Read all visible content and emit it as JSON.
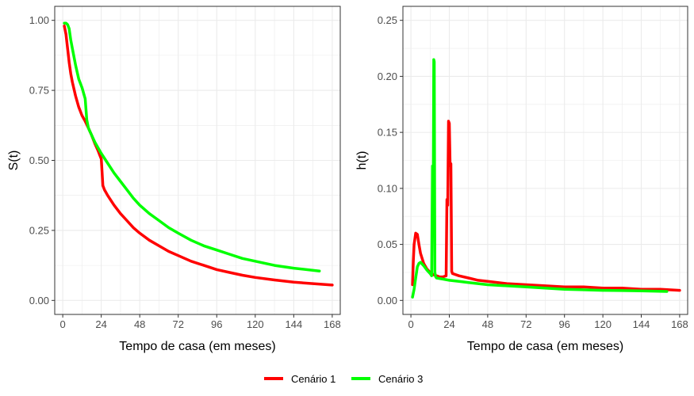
{
  "colors": {
    "scenario1": "#ff0000",
    "scenario3": "#00ff00",
    "grid": "#ebebeb",
    "panel_border": "#333333"
  },
  "legend": {
    "position": "bottom",
    "items": [
      {
        "label": "Cenário 1",
        "color": "#ff0000"
      },
      {
        "label": "Cenário 3",
        "color": "#00ff00"
      }
    ]
  },
  "chart_data": [
    {
      "type": "line",
      "xlabel": "Tempo de casa (em meses)",
      "ylabel": "S(t)",
      "xlim": [
        -5,
        173
      ],
      "ylim": [
        -0.05,
        1.05
      ],
      "xticks": [
        0,
        24,
        48,
        72,
        96,
        120,
        144,
        168
      ],
      "yticks": [
        0.0,
        0.25,
        0.5,
        0.75,
        1.0
      ],
      "ytick_labels": [
        "0.00",
        "0.25",
        "0.50",
        "0.75",
        "1.00"
      ],
      "grid": true,
      "series": [
        {
          "name": "Cenário 1",
          "color": "#ff0000",
          "x": [
            1,
            2,
            3,
            4,
            5,
            6,
            8,
            10,
            12,
            14,
            16,
            18,
            20,
            22,
            23,
            24,
            25,
            26,
            28,
            32,
            36,
            40,
            44,
            48,
            54,
            60,
            66,
            72,
            80,
            88,
            96,
            104,
            112,
            120,
            132,
            144,
            156,
            168
          ],
          "y": [
            0.98,
            0.95,
            0.9,
            0.85,
            0.81,
            0.78,
            0.73,
            0.69,
            0.66,
            0.64,
            0.615,
            0.59,
            0.56,
            0.535,
            0.52,
            0.505,
            0.41,
            0.395,
            0.375,
            0.34,
            0.31,
            0.285,
            0.26,
            0.24,
            0.215,
            0.195,
            0.175,
            0.16,
            0.14,
            0.125,
            0.11,
            0.1,
            0.09,
            0.082,
            0.073,
            0.065,
            0.06,
            0.055
          ]
        },
        {
          "name": "Cenário 3",
          "color": "#00ff00",
          "x": [
            1,
            2,
            3,
            4,
            5,
            6,
            8,
            10,
            12,
            13,
            14,
            15,
            16,
            20,
            24,
            28,
            32,
            36,
            40,
            44,
            48,
            54,
            60,
            66,
            72,
            80,
            88,
            96,
            104,
            112,
            120,
            132,
            144,
            160
          ],
          "y": [
            0.99,
            0.99,
            0.985,
            0.97,
            0.93,
            0.9,
            0.84,
            0.79,
            0.76,
            0.74,
            0.72,
            0.645,
            0.615,
            0.565,
            0.525,
            0.49,
            0.455,
            0.425,
            0.395,
            0.365,
            0.34,
            0.31,
            0.285,
            0.26,
            0.24,
            0.215,
            0.195,
            0.18,
            0.165,
            0.15,
            0.14,
            0.125,
            0.115,
            0.105
          ]
        }
      ]
    },
    {
      "type": "line",
      "xlabel": "Tempo de casa (em meses)",
      "ylabel": "h(t)",
      "xlim": [
        -5,
        173
      ],
      "ylim": [
        -0.0125,
        0.2625
      ],
      "xticks": [
        0,
        24,
        48,
        72,
        96,
        120,
        144,
        168
      ],
      "yticks": [
        0.0,
        0.05,
        0.1,
        0.15,
        0.2,
        0.25
      ],
      "ytick_labels": [
        "0.00",
        "0.05",
        "0.10",
        "0.15",
        "0.20",
        "0.25"
      ],
      "grid": true,
      "series": [
        {
          "name": "Cenário 1",
          "color": "#ff0000",
          "x": [
            1,
            1.5,
            2,
            3,
            4,
            5,
            6,
            8,
            10,
            12,
            14,
            16,
            18,
            20,
            22,
            22.5,
            23,
            23.5,
            24,
            24.5,
            25,
            25.5,
            26,
            30,
            36,
            42,
            48,
            60,
            72,
            84,
            96,
            108,
            120,
            132,
            144,
            156,
            168
          ],
          "y": [
            0.014,
            0.035,
            0.05,
            0.06,
            0.059,
            0.05,
            0.042,
            0.033,
            0.028,
            0.025,
            0.023,
            0.022,
            0.021,
            0.021,
            0.022,
            0.09,
            0.085,
            0.16,
            0.158,
            0.12,
            0.122,
            0.026,
            0.024,
            0.022,
            0.02,
            0.018,
            0.017,
            0.015,
            0.014,
            0.013,
            0.012,
            0.012,
            0.011,
            0.011,
            0.01,
            0.01,
            0.009
          ]
        },
        {
          "name": "Cenário 3",
          "color": "#00ff00",
          "x": [
            1,
            2,
            3,
            4,
            5,
            6,
            8,
            10,
            12,
            13,
            13.5,
            14,
            14.3,
            14.6,
            15,
            15.5,
            16,
            20,
            24,
            30,
            36,
            48,
            60,
            72,
            84,
            96,
            108,
            120,
            132,
            144,
            160
          ],
          "y": [
            0.003,
            0.01,
            0.02,
            0.03,
            0.033,
            0.034,
            0.031,
            0.027,
            0.024,
            0.022,
            0.12,
            0.11,
            0.215,
            0.213,
            0.025,
            0.021,
            0.02,
            0.019,
            0.018,
            0.017,
            0.016,
            0.014,
            0.013,
            0.012,
            0.011,
            0.01,
            0.0095,
            0.009,
            0.0088,
            0.0085,
            0.008
          ]
        }
      ]
    }
  ]
}
